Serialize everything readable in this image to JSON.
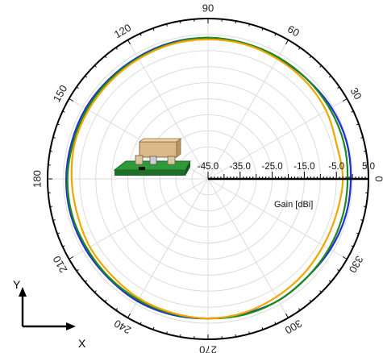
{
  "chart_data": {
    "type": "polar",
    "angle_unit": "degrees",
    "angle_labels": [
      "0",
      "30",
      "60",
      "90",
      "120",
      "150",
      "180",
      "210",
      "240",
      "270",
      "300",
      "330"
    ],
    "radial_axis": {
      "title": "Gain [dBi]",
      "tick_labels": [
        "-45.0",
        "-35.0",
        "-25.0",
        "-15.0",
        "-5.0",
        "5.0"
      ],
      "range": [
        -45,
        5
      ]
    },
    "grid": true,
    "angles": [
      0,
      15,
      30,
      45,
      60,
      75,
      90,
      105,
      120,
      135,
      150,
      165,
      180,
      195,
      210,
      225,
      240,
      255,
      270,
      285,
      300,
      315,
      330,
      345
    ],
    "series": [
      {
        "color": "#1f2fd6",
        "values": [
          -0.5,
          -0.3,
          -0.6,
          -1.2,
          -1.4,
          -1.2,
          -1.0,
          -1.0,
          -1.2,
          -1.2,
          -1.0,
          -1.0,
          -0.8,
          -0.8,
          -1.0,
          -1.2,
          -1.0,
          -1.2,
          -1.5,
          -1.5,
          -1.2,
          -1.5,
          -1.0,
          -0.6
        ]
      },
      {
        "color": "#1e8a1e",
        "values": [
          -1.5,
          -1.2,
          -1.2,
          -1.2,
          -1.2,
          -1.2,
          -1.0,
          -1.2,
          -1.5,
          -1.5,
          -1.5,
          -1.5,
          -1.2,
          -1.2,
          -1.5,
          -1.5,
          -1.5,
          -1.5,
          -1.5,
          -1.2,
          -1.2,
          -1.5,
          -1.5,
          -1.5
        ]
      },
      {
        "color": "#f0a500",
        "values": [
          -3.0,
          -3.5,
          -2.5,
          -2.0,
          -1.8,
          -1.5,
          -1.5,
          -1.5,
          -1.8,
          -2.0,
          -2.0,
          -2.0,
          -2.5,
          -2.8,
          -2.5,
          -2.5,
          -2.0,
          -1.8,
          -1.5,
          -1.8,
          -2.5,
          -3.0,
          -3.5,
          -3.5
        ]
      }
    ]
  },
  "coordinate_axes": {
    "y_label": "Y",
    "x_label": "X"
  }
}
